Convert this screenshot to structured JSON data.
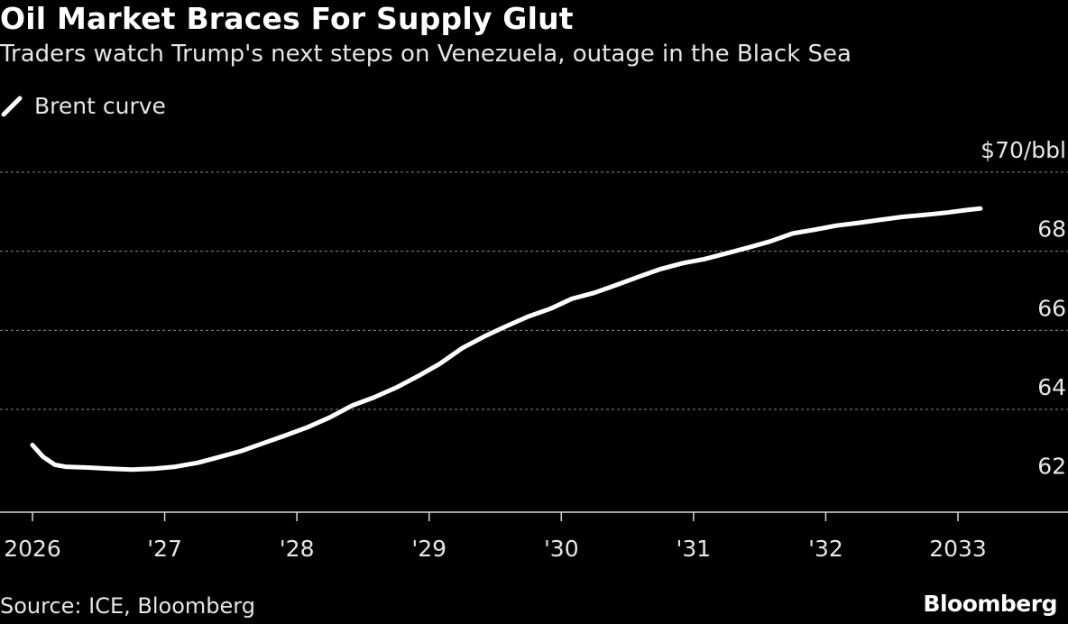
{
  "title": "Oil Market Braces For Supply Glut",
  "subtitle": "Traders watch Trump's next steps on Venezuela, outage in the Black Sea",
  "source": "Source: ICE, Bloomberg",
  "brand": "Bloomberg",
  "colors": {
    "background": "#000000",
    "line": "#ffffff",
    "grid": "#8a8a8a",
    "text": "#e6e6e6"
  },
  "chart_data": {
    "type": "line",
    "title": "Oil Market Braces For Supply Glut",
    "subtitle": "Traders watch Trump's next steps on Venezuela, outage in the Black Sea",
    "ylabel": "$70/bbl",
    "xlabel": "",
    "ylim": [
      61.4,
      70
    ],
    "xlim": [
      2026,
      2033.8
    ],
    "grid": true,
    "legend_position": "top-left",
    "y_ticks": [
      {
        "value": 62,
        "label": "62"
      },
      {
        "value": 64,
        "label": "64"
      },
      {
        "value": 66,
        "label": "66"
      },
      {
        "value": 68,
        "label": "68"
      },
      {
        "value": 70,
        "label": "$70/bbl"
      }
    ],
    "x_ticks": [
      {
        "value": 2026,
        "label": "2026"
      },
      {
        "value": 2027,
        "label": "'27"
      },
      {
        "value": 2028,
        "label": "'28"
      },
      {
        "value": 2029,
        "label": "'29"
      },
      {
        "value": 2030,
        "label": "'30"
      },
      {
        "value": 2031,
        "label": "'31"
      },
      {
        "value": 2032,
        "label": "'32"
      },
      {
        "value": 2033,
        "label": "2033"
      }
    ],
    "series": [
      {
        "name": "Brent curve",
        "x": [
          2026.0,
          2026.08,
          2026.17,
          2026.25,
          2026.42,
          2026.58,
          2026.75,
          2026.92,
          2027.08,
          2027.25,
          2027.42,
          2027.58,
          2027.75,
          2027.92,
          2028.08,
          2028.25,
          2028.42,
          2028.58,
          2028.75,
          2028.92,
          2029.08,
          2029.25,
          2029.42,
          2029.58,
          2029.75,
          2029.92,
          2030.08,
          2030.25,
          2030.42,
          2030.58,
          2030.75,
          2030.92,
          2031.08,
          2031.25,
          2031.42,
          2031.58,
          2031.75,
          2031.92,
          2032.08,
          2032.25,
          2032.42,
          2032.58,
          2032.75,
          2032.92,
          2033.08,
          2033.17
        ],
        "y": [
          63.1,
          62.8,
          62.6,
          62.55,
          62.53,
          62.5,
          62.48,
          62.5,
          62.55,
          62.65,
          62.8,
          62.95,
          63.15,
          63.35,
          63.55,
          63.8,
          64.1,
          64.3,
          64.55,
          64.85,
          65.15,
          65.55,
          65.85,
          66.1,
          66.35,
          66.55,
          66.8,
          66.95,
          67.15,
          67.35,
          67.55,
          67.7,
          67.8,
          67.95,
          68.1,
          68.25,
          68.45,
          68.55,
          68.65,
          68.72,
          68.8,
          68.87,
          68.92,
          68.98,
          69.05,
          69.08
        ]
      }
    ],
    "legend": [
      "Brent curve"
    ]
  }
}
